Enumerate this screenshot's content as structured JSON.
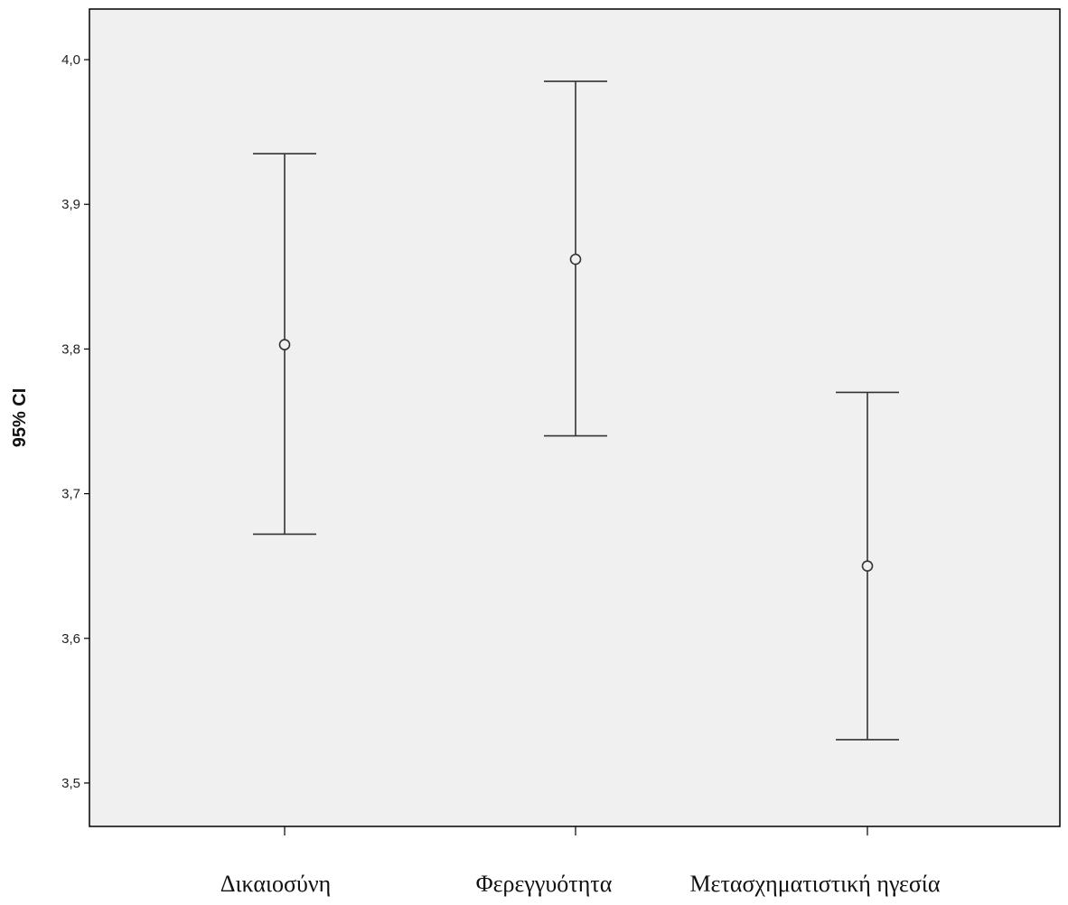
{
  "chart_data": {
    "type": "errorbar",
    "title": "",
    "xlabel": "",
    "ylabel": "95% CI",
    "ylim": [
      3.47,
      4.035
    ],
    "yticks": [
      3.5,
      3.6,
      3.7,
      3.8,
      3.9,
      4.0
    ],
    "ytick_labels": [
      "3,5",
      "3,6",
      "3,7",
      "3,8",
      "3,9",
      "4,0"
    ],
    "grid": false,
    "categories": [
      "Δικαιοσύνη",
      "Φερεγγυότητα",
      "Μετασχηματιστική ηγεσία"
    ],
    "means": [
      3.803,
      3.862,
      3.65
    ],
    "lower": [
      3.672,
      3.74,
      3.53
    ],
    "upper": [
      3.935,
      3.985,
      3.77
    ]
  },
  "colors": {
    "plot_background": "#f0f0f0",
    "axis": "#000000",
    "marks": "#333333"
  }
}
